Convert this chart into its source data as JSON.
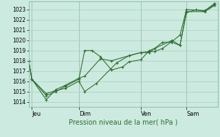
{
  "background_color": "#cceae0",
  "grid_color": "#aaccbb",
  "line_color": "#2d6e2d",
  "marker_color": "#2d6e2d",
  "xlabel": "Pression niveau de la mer( hPa )",
  "ylim": [
    1013.5,
    1023.8
  ],
  "yticks": [
    1014,
    1015,
    1016,
    1017,
    1018,
    1019,
    1020,
    1021,
    1022,
    1023
  ],
  "xtick_labels": [
    "Jeu",
    "Dim",
    "Ven",
    "Sam"
  ],
  "xtick_positions": [
    33,
    105,
    200,
    270
  ],
  "xlim": [
    28,
    318
  ],
  "series": [
    [
      28,
      1018.0,
      33,
      1016.2,
      55,
      1014.8,
      70,
      1015.1,
      84,
      1015.3,
      105,
      1016.0,
      114,
      1015.0,
      132,
      1015.8,
      163,
      1017.8,
      182,
      1018.5,
      200,
      1018.8,
      213,
      1018.8,
      221,
      1019.2,
      233,
      1019.8,
      248,
      1019.8,
      260,
      1019.5,
      270,
      1022.7,
      285,
      1023.0,
      298,
      1022.8,
      313,
      1023.4
    ],
    [
      28,
      1018.0,
      33,
      1016.2,
      55,
      1014.6,
      70,
      1015.0,
      84,
      1015.5,
      105,
      1016.2,
      114,
      1019.0,
      125,
      1019.0,
      138,
      1018.4,
      155,
      1017.1,
      172,
      1017.4,
      182,
      1017.9,
      200,
      1018.1,
      213,
      1019.0,
      221,
      1019.2,
      248,
      1020.0,
      260,
      1019.5,
      270,
      1022.8,
      298,
      1022.8,
      313,
      1023.5
    ],
    [
      28,
      1018.0,
      33,
      1016.2,
      55,
      1014.2,
      70,
      1015.2,
      84,
      1015.6,
      105,
      1016.3,
      114,
      1016.5,
      138,
      1018.2,
      155,
      1018.0,
      182,
      1018.5,
      200,
      1018.8,
      213,
      1018.9,
      221,
      1018.9,
      233,
      1019.2,
      248,
      1019.9,
      260,
      1020.5,
      270,
      1023.0,
      298,
      1022.9,
      313,
      1023.6
    ]
  ],
  "vlines": [
    33,
    105,
    200,
    270
  ],
  "figsize": [
    3.2,
    2.0
  ],
  "dpi": 100
}
